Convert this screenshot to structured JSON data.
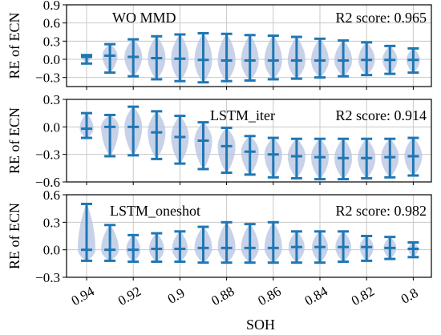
{
  "chart_data": {
    "type": "violin",
    "xlabel": "SOH",
    "x_tick_labels": [
      "0.94",
      "0.92",
      "0.9",
      "0.88",
      "0.86",
      "0.84",
      "0.82",
      "0.8"
    ],
    "x": [
      0.94,
      0.93,
      0.92,
      0.91,
      0.9,
      0.89,
      0.88,
      0.87,
      0.86,
      0.85,
      0.84,
      0.83,
      0.82,
      0.81,
      0.8
    ],
    "colors": {
      "violin": "#b4c3e1",
      "line": "#1f77b4",
      "grid": "#c8c8c8"
    },
    "panels": [
      {
        "annotation": "WO MMD",
        "r2_label": "R2 score: 0.965",
        "ylabel": "RE of ECN",
        "ylim": [
          -0.45,
          0.9
        ],
        "yticks": [
          -0.3,
          0.0,
          0.3,
          0.6,
          0.9
        ],
        "ytick_labels": [
          "−0.3",
          "0.0",
          "0.3",
          "0.6",
          "0.9"
        ],
        "min": [
          -0.07,
          -0.22,
          -0.28,
          -0.33,
          -0.36,
          -0.38,
          -0.36,
          -0.35,
          -0.33,
          -0.32,
          -0.3,
          -0.28,
          -0.26,
          -0.24,
          -0.22
        ],
        "median": [
          0.04,
          0.06,
          0.04,
          0.02,
          0.01,
          -0.01,
          -0.02,
          -0.02,
          -0.02,
          -0.02,
          -0.02,
          -0.02,
          -0.01,
          -0.01,
          -0.01
        ],
        "max": [
          0.07,
          0.25,
          0.33,
          0.38,
          0.41,
          0.43,
          0.42,
          0.4,
          0.39,
          0.37,
          0.34,
          0.31,
          0.28,
          0.22,
          0.18
        ]
      },
      {
        "annotation": "LSTM_iter",
        "r2_label": "R2 score: 0.914",
        "ylabel": "RE of ECN",
        "ylim": [
          -0.6,
          0.3
        ],
        "yticks": [
          -0.6,
          -0.3,
          0.0,
          0.3
        ],
        "ytick_labels": [
          "−0.6",
          "−0.3",
          "0.0",
          "0.3"
        ],
        "min": [
          -0.12,
          -0.32,
          -0.31,
          -0.35,
          -0.4,
          -0.46,
          -0.5,
          -0.52,
          -0.55,
          -0.56,
          -0.57,
          -0.57,
          -0.56,
          -0.55,
          -0.53
        ],
        "median": [
          -0.02,
          0.0,
          0.0,
          -0.06,
          -0.11,
          -0.15,
          -0.21,
          -0.27,
          -0.3,
          -0.32,
          -0.33,
          -0.34,
          -0.34,
          -0.33,
          -0.32
        ],
        "max": [
          0.15,
          0.13,
          0.22,
          0.17,
          0.12,
          0.05,
          -0.01,
          -0.1,
          -0.12,
          -0.13,
          -0.13,
          -0.13,
          -0.13,
          -0.13,
          -0.12
        ]
      },
      {
        "annotation": "LSTM_oneshot",
        "r2_label": "R2 score: 0.982",
        "ylabel": "RE of ECN",
        "ylim": [
          -0.3,
          0.6
        ],
        "yticks": [
          -0.3,
          0.0,
          0.3,
          0.6
        ],
        "ytick_labels": [
          "−0.3",
          "0.0",
          "0.3",
          "0.6"
        ],
        "min": [
          -0.12,
          -0.12,
          -0.13,
          -0.13,
          -0.13,
          -0.14,
          -0.14,
          -0.14,
          -0.14,
          -0.14,
          -0.14,
          -0.13,
          -0.12,
          -0.1,
          -0.08
        ],
        "median": [
          0.0,
          0.0,
          0.0,
          0.01,
          0.01,
          0.02,
          0.02,
          0.02,
          0.02,
          0.03,
          0.03,
          0.03,
          0.03,
          0.02,
          0.01
        ],
        "max": [
          0.5,
          0.27,
          0.16,
          0.18,
          0.2,
          0.25,
          0.3,
          0.28,
          0.3,
          0.2,
          0.2,
          0.2,
          0.15,
          0.14,
          0.08
        ]
      }
    ]
  }
}
